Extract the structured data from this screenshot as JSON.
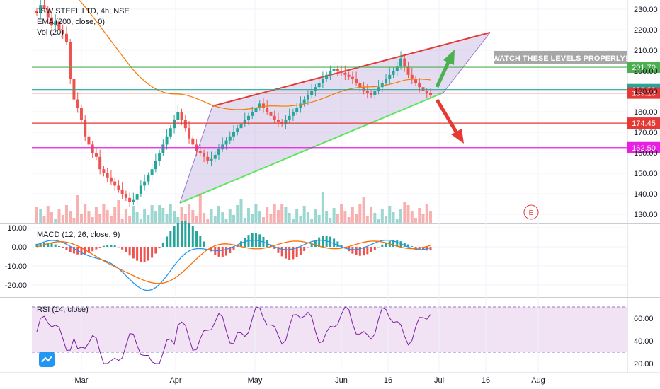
{
  "chart_data": [
    {
      "type": "candlestick",
      "title": "JSW STEEL LTD, 4h, NSE",
      "indicators": [
        "EMA (200, close, 0)",
        "Vol (20)"
      ],
      "price_ticks": [
        "230.00",
        "220.00",
        "210.00",
        "200.00",
        "190.00",
        "180.00",
        "170.00",
        "160.00",
        "150.00",
        "140.00",
        "130.00"
      ],
      "x_ticks": [
        "Mar",
        "Apr",
        "May",
        "Jun",
        "16",
        "Jul",
        "16",
        "Aug"
      ],
      "price_levels": [
        {
          "value": 201.7,
          "label": "201.70",
          "color": "#4caf50"
        },
        {
          "value": 190.8,
          "label": "190.80",
          "color": "#26a69a"
        },
        {
          "value": 189.1,
          "label": "189.10",
          "color": "#e53935"
        },
        {
          "value": 174.45,
          "label": "174.45",
          "color": "#e53935"
        },
        {
          "value": 162.5,
          "label": "162.50",
          "color": "#e91ee3"
        }
      ],
      "annotation": "WATCH THESE LEVELS PROPERLY!",
      "earnings_marker": "E",
      "close_series": [
        228,
        232,
        230,
        226,
        222,
        224,
        220,
        218,
        214,
        196,
        186,
        182,
        176,
        168,
        164,
        160,
        158,
        152,
        150,
        148,
        146,
        144,
        142,
        140,
        138,
        136,
        137,
        140,
        144,
        146,
        149,
        152,
        156,
        160,
        164,
        168,
        172,
        176,
        180,
        176,
        172,
        167,
        164,
        161,
        160,
        158,
        156,
        157,
        159,
        162,
        164,
        166,
        168,
        170,
        172,
        174,
        176,
        178,
        180,
        182,
        184,
        182,
        180,
        178,
        176,
        175,
        174,
        176,
        178,
        180,
        182,
        184,
        186,
        188,
        190,
        192,
        194,
        196,
        198,
        200,
        201,
        200,
        199,
        198,
        197,
        196,
        194,
        192,
        190,
        189,
        188,
        190,
        192,
        194,
        196,
        198,
        200,
        202,
        206,
        202,
        198,
        196,
        194,
        192,
        190,
        189,
        188
      ]
    },
    {
      "type": "histogram+line",
      "title": "MACD (12, 26, close, 9)",
      "y_ticks": [
        "10.00",
        "0.00",
        "-10.00",
        "-20.00"
      ]
    },
    {
      "type": "line",
      "title": "RSI (14, close)",
      "y_ticks": [
        "60.00",
        "40.00",
        "20.00"
      ]
    }
  ],
  "colors": {
    "up": "#26a69a",
    "down": "#ef5350",
    "ema": "#f57c00",
    "macd": "#2196f3",
    "signal": "#ff6d00",
    "rsi": "#7b1fa2",
    "wedge_fill": "#b39ddb",
    "wedge_upper": "#e53935",
    "wedge_lower": "#4caf50"
  }
}
